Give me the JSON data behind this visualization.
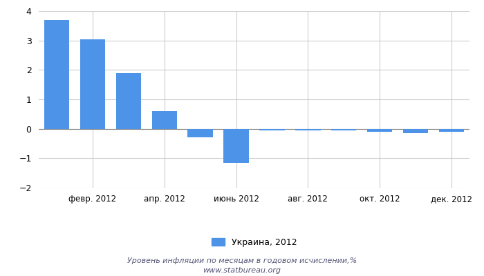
{
  "months": [
    1,
    2,
    3,
    4,
    5,
    6,
    7,
    8,
    9,
    10,
    11,
    12
  ],
  "values": [
    3.7,
    3.05,
    1.9,
    0.6,
    -0.3,
    -1.15,
    -0.05,
    -0.05,
    -0.05,
    -0.1,
    -0.15,
    -0.1
  ],
  "bar_color": "#4d94e8",
  "xtick_positions": [
    2,
    4,
    6,
    8,
    10,
    12
  ],
  "xtick_labels": [
    "февр. 2012",
    "апр. 2012",
    "июнь 2012",
    "авг. 2012",
    "окт. 2012",
    "дек. 2012"
  ],
  "ylim": [
    -2,
    4
  ],
  "yticks": [
    -2,
    -1,
    0,
    1,
    2,
    3,
    4
  ],
  "legend_label": "Украина, 2012",
  "footer_line1": "Уровень инфляции по месяцам в годовом исчислении,%",
  "footer_line2": "www.statbureau.org",
  "background_color": "#ffffff",
  "grid_color": "#cccccc"
}
